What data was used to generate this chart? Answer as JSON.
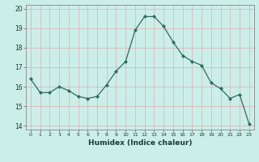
{
  "x": [
    0,
    1,
    2,
    3,
    4,
    5,
    6,
    7,
    8,
    9,
    10,
    11,
    12,
    13,
    14,
    15,
    16,
    17,
    18,
    19,
    20,
    21,
    22,
    23
  ],
  "y": [
    16.4,
    15.7,
    15.7,
    16.0,
    15.8,
    15.5,
    15.4,
    15.5,
    16.1,
    16.8,
    17.3,
    18.9,
    19.6,
    19.6,
    19.1,
    18.3,
    17.6,
    17.3,
    17.1,
    16.2,
    15.9,
    15.4,
    15.6,
    14.1
  ],
  "xlabel": "Humidex (Indice chaleur)",
  "xlim": [
    -0.5,
    23.5
  ],
  "ylim": [
    13.8,
    20.2
  ],
  "yticks": [
    14,
    15,
    16,
    17,
    18,
    19,
    20
  ],
  "xticks": [
    0,
    1,
    2,
    3,
    4,
    5,
    6,
    7,
    8,
    9,
    10,
    11,
    12,
    13,
    14,
    15,
    16,
    17,
    18,
    19,
    20,
    21,
    22,
    23
  ],
  "bg_color": "#cceee8",
  "grid_color": "#d9b0b0",
  "line_color": "#2e6b60",
  "marker_color": "#2e6b60"
}
